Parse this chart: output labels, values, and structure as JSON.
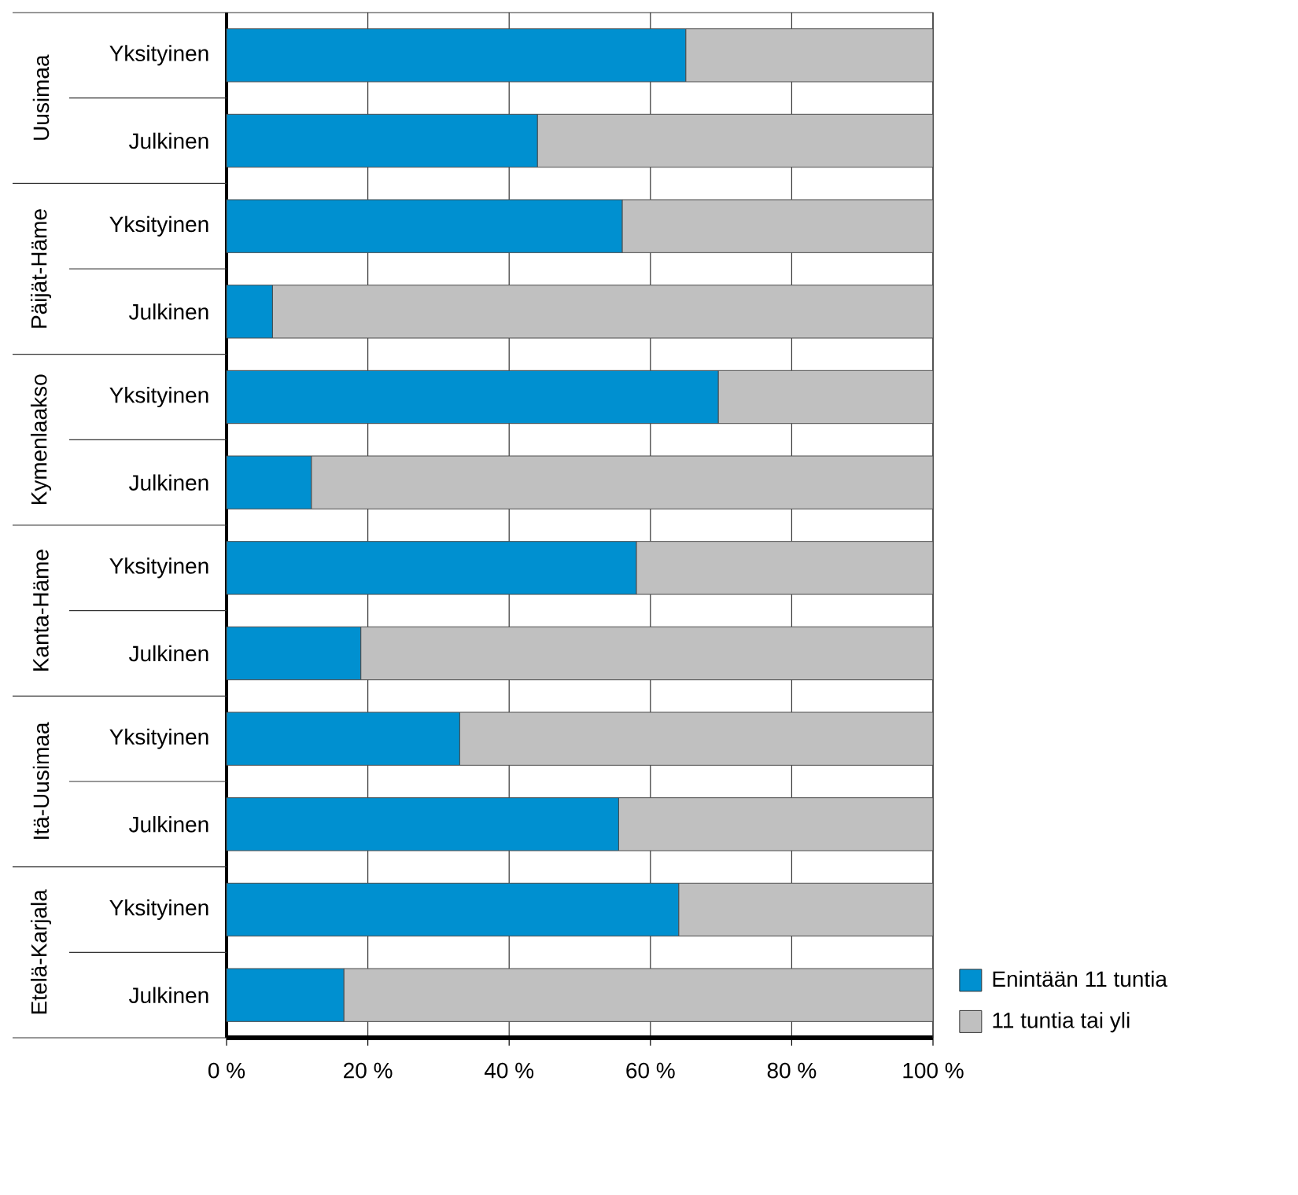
{
  "chart_data": {
    "type": "bar",
    "orientation": "horizontal",
    "stacked": true,
    "categories": [
      "Yksityinen",
      "Julkinen",
      "Yksityinen",
      "Julkinen",
      "Yksityinen",
      "Julkinen",
      "Yksityinen",
      "Julkinen",
      "Yksityinen",
      "Julkinen",
      "Yksityinen",
      "Julkinen"
    ],
    "annotations": [
      "Uusimaa",
      "Päijät-Häme",
      "Kymenlaakso",
      "Kanta-Häme",
      "Itä-Uusimaa",
      "Etelä-Karjala"
    ],
    "series": [
      {
        "name": "Enintään 11 tuntia",
        "color": "#0090d0",
        "values": [
          65,
          44,
          56,
          6.5,
          69.6,
          12,
          58,
          19,
          33,
          55.5,
          64,
          16.6
        ]
      },
      {
        "name": "11 tuntia tai yli",
        "color": "#c0c0c0",
        "values": [
          35,
          56,
          44,
          93.5,
          30.4,
          88,
          42,
          81,
          67,
          44.5,
          36,
          83.4
        ]
      }
    ],
    "xlim": [
      0,
      100
    ],
    "xticks": [
      {
        "value": 0,
        "label": "0 %"
      },
      {
        "value": 20,
        "label": "20 %"
      },
      {
        "value": 40,
        "label": "40 %"
      },
      {
        "value": 60,
        "label": "60 %"
      },
      {
        "value": 80,
        "label": "80 %"
      },
      {
        "value": 100,
        "label": "100 %"
      }
    ],
    "grid": "x",
    "legend": "bottom right"
  }
}
